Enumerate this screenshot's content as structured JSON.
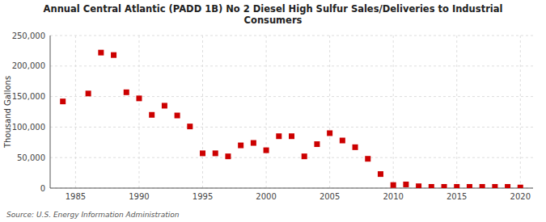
{
  "chart_data": {
    "type": "scatter",
    "title": "Annual Central Atlantic (PADD 1B) No 2 Diesel High Sulfur Sales/Deliveries to Industrial\nConsumers",
    "y_label": "Thousand Gallons",
    "source": "Source: U.S. Energy Information Administration",
    "x": [
      1984,
      1986,
      1987,
      1988,
      1989,
      1990,
      1991,
      1992,
      1993,
      1994,
      1995,
      1996,
      1997,
      1998,
      1999,
      2000,
      2001,
      2002,
      2003,
      2004,
      2005,
      2006,
      2007,
      2008,
      2009,
      2010,
      2011,
      2012,
      2013,
      2014,
      2015,
      2016,
      2017,
      2018,
      2019,
      2020
    ],
    "values": [
      142000,
      155000,
      222000,
      218000,
      157000,
      147000,
      120000,
      135000,
      119000,
      101000,
      57000,
      57000,
      52000,
      70000,
      74000,
      62000,
      85000,
      85000,
      52000,
      72000,
      90000,
      78000,
      67000,
      48000,
      23000,
      5000,
      6000,
      3000,
      2000,
      2000,
      2000,
      2000,
      2000,
      2000,
      2000,
      1000
    ],
    "color": "#cc0000",
    "marker": "square",
    "xlim": [
      1983,
      2021
    ],
    "xticks": [
      1985,
      1990,
      1995,
      2000,
      2005,
      2010,
      2015,
      2020
    ],
    "ylim": [
      0,
      250000
    ],
    "yticks": [
      0,
      {
        "value": 50000,
        "label": "50,000"
      },
      {
        "value": 100000,
        "label": "100,000"
      },
      {
        "value": 150000,
        "label": "150,000"
      },
      {
        "value": 200000,
        "label": "200,000"
      },
      {
        "value": 250000,
        "label": "250,000"
      }
    ],
    "grid": true
  }
}
